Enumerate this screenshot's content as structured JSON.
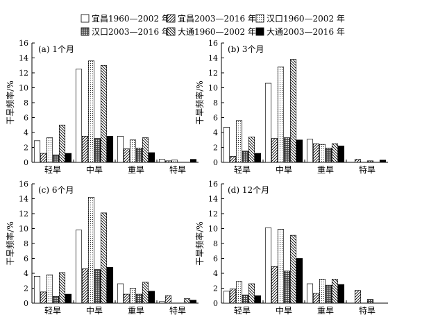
{
  "chart_data": {
    "type": "bar",
    "legend": {
      "placement": "top",
      "entries": [
        {
          "name": "宜昌1960—2002 年",
          "pattern": "white"
        },
        {
          "name": "宜昌2003—2016 年",
          "pattern": "diag-slash"
        },
        {
          "name": "汉口1960—2002 年",
          "pattern": "dots"
        },
        {
          "name": "汉口2003—2016 年",
          "pattern": "grid"
        },
        {
          "name": "大通1960—2002 年",
          "pattern": "diag-back"
        },
        {
          "name": "大通2003—2016 年",
          "pattern": "black"
        }
      ]
    },
    "panels": [
      {
        "title": "(a) 1个月",
        "ylabel": "干旱频率/%",
        "ylim": [
          0,
          16
        ],
        "yticks": [
          "0",
          "2",
          "4",
          "6",
          "8",
          "10",
          "12",
          "14",
          "16"
        ],
        "categories": [
          "轻旱",
          "中旱",
          "重旱",
          "特旱"
        ],
        "series": [
          [
            2.9,
            12.5,
            3.5,
            0.4
          ],
          [
            1.2,
            3.5,
            1.8,
            0.2
          ],
          [
            3.3,
            13.6,
            3.0,
            0.3
          ],
          [
            1.0,
            3.2,
            1.9,
            0.0
          ],
          [
            5.0,
            13.0,
            3.3,
            0.0
          ],
          [
            1.2,
            3.5,
            1.3,
            0.4
          ]
        ]
      },
      {
        "title": "(b) 3个月",
        "ylabel": "干旱频率/%",
        "ylim": [
          0,
          16
        ],
        "yticks": [
          "0",
          "2",
          "4",
          "6",
          "8",
          "10",
          "12",
          "14",
          "16"
        ],
        "categories": [
          "轻旱",
          "中旱",
          "重旱",
          "特旱"
        ],
        "series": [
          [
            4.7,
            10.6,
            3.1,
            0.0
          ],
          [
            0.8,
            3.2,
            2.5,
            0.4
          ],
          [
            5.6,
            12.8,
            2.4,
            0.0
          ],
          [
            1.5,
            3.3,
            1.9,
            0.2
          ],
          [
            3.4,
            13.8,
            2.5,
            0.0
          ],
          [
            1.2,
            3.0,
            2.2,
            0.3
          ]
        ]
      },
      {
        "title": "(c) 6个月",
        "ylabel": "干旱频率/%",
        "ylim": [
          0,
          16
        ],
        "yticks": [
          "0",
          "2",
          "4",
          "6",
          "8",
          "10",
          "12",
          "14",
          "16"
        ],
        "categories": [
          "轻旱",
          "中旱",
          "重旱",
          "特旱"
        ],
        "series": [
          [
            3.6,
            9.8,
            2.6,
            0.2
          ],
          [
            1.5,
            4.6,
            1.2,
            1.0
          ],
          [
            3.8,
            14.2,
            2.0,
            0.0
          ],
          [
            0.9,
            4.5,
            1.2,
            0.0
          ],
          [
            4.1,
            12.1,
            2.8,
            0.6
          ],
          [
            1.2,
            4.8,
            1.6,
            0.4
          ]
        ]
      },
      {
        "title": "(d) 12个月",
        "ylabel": "干旱频率/%",
        "ylim": [
          0,
          16
        ],
        "yticks": [
          "0",
          "2",
          "4",
          "6",
          "8",
          "10",
          "12",
          "14",
          "16"
        ],
        "categories": [
          "轻旱",
          "中旱",
          "重旱",
          "特旱"
        ],
        "series": [
          [
            1.6,
            10.1,
            2.6,
            0.0
          ],
          [
            1.9,
            4.9,
            1.3,
            1.7
          ],
          [
            2.9,
            9.9,
            3.2,
            0.0
          ],
          [
            1.1,
            4.3,
            2.4,
            0.5
          ],
          [
            2.6,
            9.1,
            3.2,
            0.0
          ],
          [
            1.0,
            6.0,
            2.5,
            0.0
          ]
        ]
      }
    ]
  }
}
